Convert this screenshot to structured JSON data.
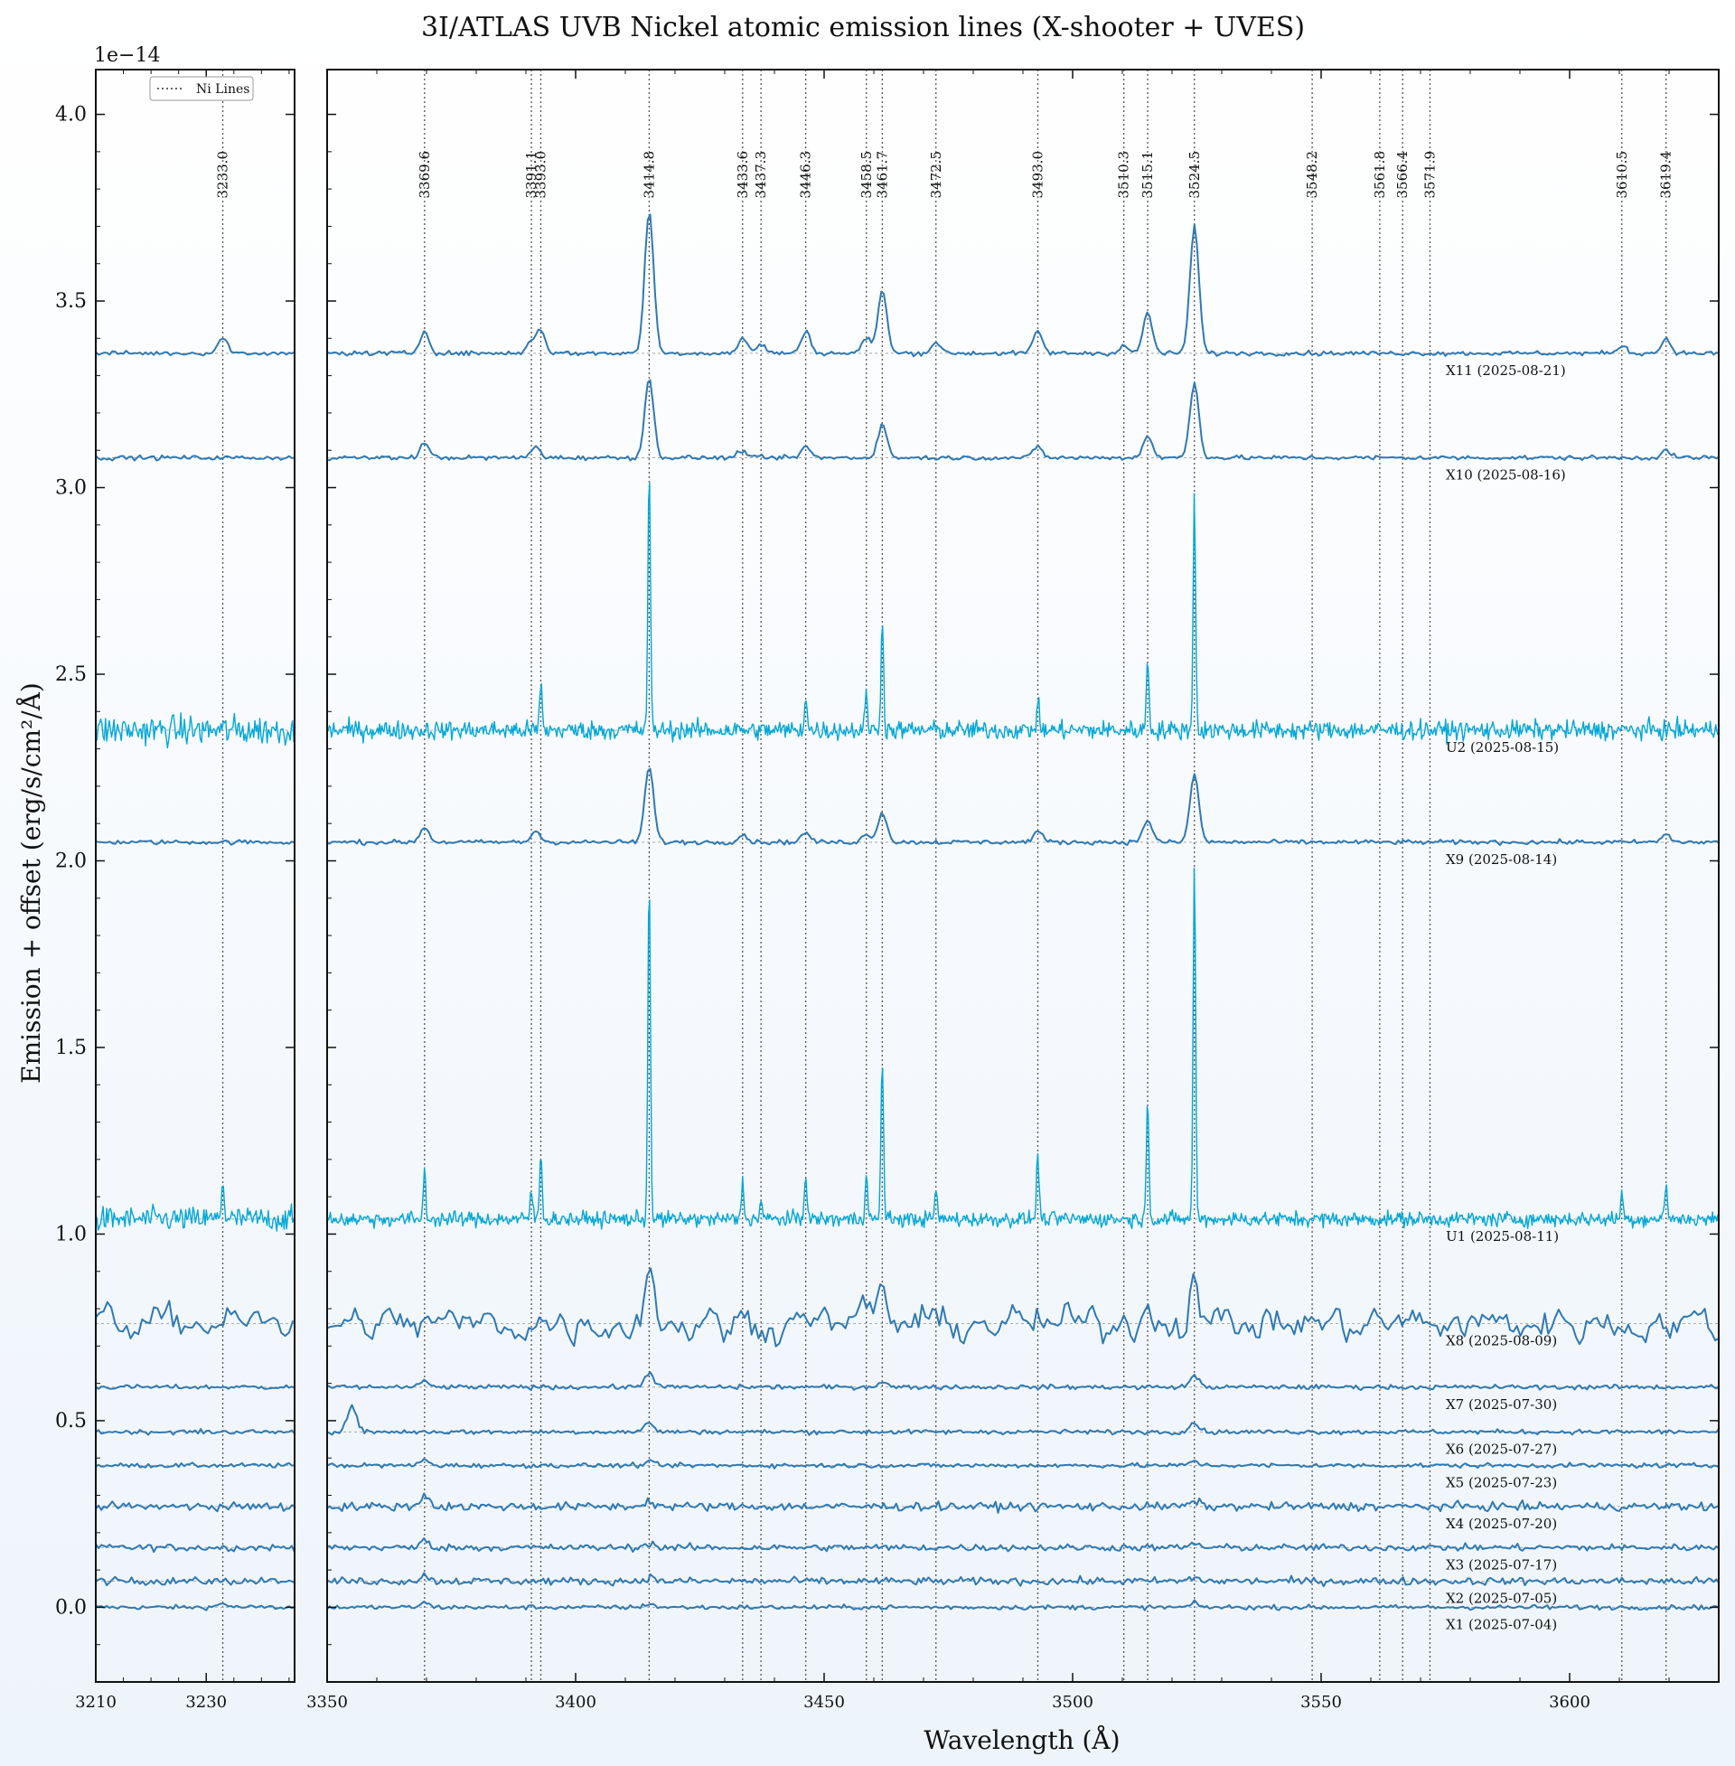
{
  "chart_data": {
    "type": "line",
    "title": "3I/ATLAS UVB Nickel atomic emission lines (X-shooter + UVES)",
    "xlabel": "Wavelength (Å)",
    "ylabel": "Emission + offset (erg/s/cm²/Å)",
    "y_multiplier": "1e−14",
    "ylim": [
      -0.2,
      4.12
    ],
    "y_ticks": [
      "0.0",
      "0.5",
      "1.0",
      "1.5",
      "2.0",
      "2.5",
      "3.0",
      "3.5",
      "4.0"
    ],
    "panels": [
      {
        "xlim": [
          3210,
          3246
        ],
        "x_ticks": [
          3210,
          3230
        ],
        "line_wavelengths": [
          3233.0
        ]
      },
      {
        "xlim": [
          3350,
          3630
        ],
        "x_ticks": [
          3350,
          3400,
          3450,
          3500,
          3550,
          3600
        ],
        "line_wavelengths": [
          3369.6,
          3391.1,
          3393.0,
          3414.8,
          3433.6,
          3437.3,
          3446.3,
          3458.5,
          3461.7,
          3472.5,
          3493.0,
          3510.3,
          3515.1,
          3524.5,
          3548.2,
          3561.8,
          3566.4,
          3571.9,
          3610.5,
          3619.4
        ]
      }
    ],
    "line_labels": [
      "3233.0",
      "3369.6",
      "3391.1",
      "3393.0",
      "3414.8",
      "3433.6",
      "3437.3",
      "3446.3",
      "3458.5",
      "3461.7",
      "3472.5",
      "3493.0",
      "3510.3",
      "3515.1",
      "3524.5",
      "3548.2",
      "3561.8",
      "3566.4",
      "3571.9",
      "3610.5",
      "3619.4"
    ],
    "legend": {
      "entries": [
        "Ni Lines"
      ],
      "placement": "top-center of left panel"
    },
    "grid": false,
    "series": [
      {
        "name": "X1 (2025-07-04)",
        "baseline": 0.0,
        "noise": 0.006,
        "peaks": [
          [
            3233.0,
            0.01
          ],
          [
            3369.6,
            0.012
          ],
          [
            3414.8,
            0.01
          ],
          [
            3524.5,
            0.01
          ]
        ]
      },
      {
        "name": "X2 (2025-07-05)",
        "baseline": 0.07,
        "noise": 0.01,
        "peaks": [
          [
            3369.6,
            0.015
          ],
          [
            3414.8,
            0.01
          ],
          [
            3524.5,
            0.01
          ]
        ]
      },
      {
        "name": "X3 (2025-07-17)",
        "baseline": 0.16,
        "noise": 0.009,
        "peaks": [
          [
            3369.6,
            0.018
          ],
          [
            3414.8,
            0.012
          ],
          [
            3524.5,
            0.012
          ]
        ]
      },
      {
        "name": "X4 (2025-07-20)",
        "baseline": 0.27,
        "noise": 0.011,
        "peaks": [
          [
            3369.6,
            0.03
          ],
          [
            3414.8,
            0.015
          ],
          [
            3524.5,
            0.015
          ]
        ]
      },
      {
        "name": "X5 (2025-07-23)",
        "baseline": 0.38,
        "noise": 0.006,
        "peaks": [
          [
            3369.6,
            0.015
          ],
          [
            3414.8,
            0.01
          ],
          [
            3524.5,
            0.012
          ]
        ]
      },
      {
        "name": "X6 (2025-07-27)",
        "baseline": 0.47,
        "noise": 0.006,
        "peaks": [
          [
            3355.0,
            0.07
          ],
          [
            3414.8,
            0.025
          ],
          [
            3524.5,
            0.025
          ]
        ]
      },
      {
        "name": "X7 (2025-07-30)",
        "baseline": 0.59,
        "noise": 0.006,
        "peaks": [
          [
            3369.6,
            0.015
          ],
          [
            3414.8,
            0.04
          ],
          [
            3461.7,
            0.015
          ],
          [
            3524.5,
            0.03
          ]
        ]
      },
      {
        "name": "X8 (2025-08-09)",
        "baseline": 0.76,
        "noise": 0.04,
        "peaks": [
          [
            3414.8,
            0.17
          ],
          [
            3461.7,
            0.09
          ],
          [
            3515.1,
            0.07
          ],
          [
            3524.5,
            0.16
          ],
          [
            3446.3,
            0.06
          ],
          [
            3458.5,
            0.05
          ]
        ]
      },
      {
        "name": "U1 (2025-08-11)",
        "baseline": 1.04,
        "noise": 0.02,
        "peaks": [
          [
            3369.6,
            0.13
          ],
          [
            3391.1,
            0.08
          ],
          [
            3393.0,
            0.17
          ],
          [
            3414.8,
            0.93
          ],
          [
            3433.6,
            0.1
          ],
          [
            3437.3,
            0.05
          ],
          [
            3446.3,
            0.13
          ],
          [
            3458.5,
            0.13
          ],
          [
            3461.7,
            0.44
          ],
          [
            3472.5,
            0.08
          ],
          [
            3493.0,
            0.18
          ],
          [
            3515.1,
            0.33
          ],
          [
            3524.5,
            0.96
          ],
          [
            3610.5,
            0.07
          ],
          [
            3619.4,
            0.1
          ],
          [
            3233.0,
            0.1
          ]
        ]
      },
      {
        "name": "X9 (2025-08-14)",
        "baseline": 2.05,
        "noise": 0.006,
        "peaks": [
          [
            3369.6,
            0.04
          ],
          [
            3392.0,
            0.03
          ],
          [
            3414.8,
            0.2
          ],
          [
            3433.6,
            0.02
          ],
          [
            3446.3,
            0.025
          ],
          [
            3458.5,
            0.02
          ],
          [
            3461.7,
            0.08
          ],
          [
            3493.0,
            0.03
          ],
          [
            3515.1,
            0.06
          ],
          [
            3524.5,
            0.18
          ],
          [
            3619.4,
            0.02
          ]
        ]
      },
      {
        "name": "U2 (2025-08-15)",
        "baseline": 2.35,
        "noise": 0.025,
        "peaks": [
          [
            3414.8,
            0.7
          ],
          [
            3461.7,
            0.31
          ],
          [
            3515.1,
            0.2
          ],
          [
            3524.5,
            0.63
          ],
          [
            3446.3,
            0.1
          ],
          [
            3458.5,
            0.1
          ],
          [
            3393.0,
            0.12
          ],
          [
            3493.0,
            0.08
          ]
        ]
      },
      {
        "name": "X10 (2025-08-16)",
        "baseline": 3.08,
        "noise": 0.006,
        "peaks": [
          [
            3369.6,
            0.04
          ],
          [
            3392.0,
            0.03
          ],
          [
            3414.8,
            0.21
          ],
          [
            3433.6,
            0.02
          ],
          [
            3446.3,
            0.03
          ],
          [
            3461.7,
            0.09
          ],
          [
            3493.0,
            0.03
          ],
          [
            3515.1,
            0.06
          ],
          [
            3524.5,
            0.2
          ],
          [
            3619.4,
            0.02
          ]
        ]
      },
      {
        "name": "X11 (2025-08-21)",
        "baseline": 3.36,
        "noise": 0.006,
        "peaks": [
          [
            3369.6,
            0.06
          ],
          [
            3391.1,
            0.03
          ],
          [
            3393.0,
            0.06
          ],
          [
            3414.8,
            0.38
          ],
          [
            3433.6,
            0.04
          ],
          [
            3437.3,
            0.025
          ],
          [
            3446.3,
            0.06
          ],
          [
            3458.5,
            0.04
          ],
          [
            3461.7,
            0.17
          ],
          [
            3472.5,
            0.03
          ],
          [
            3493.0,
            0.06
          ],
          [
            3510.3,
            0.02
          ],
          [
            3515.1,
            0.11
          ],
          [
            3524.5,
            0.34
          ],
          [
            3610.5,
            0.02
          ],
          [
            3619.4,
            0.04
          ],
          [
            3233.0,
            0.04
          ]
        ]
      }
    ],
    "colors": {
      "xshooter": "#2f79b2",
      "uves": "#00a7d6",
      "ni_lines": "#555555"
    }
  }
}
